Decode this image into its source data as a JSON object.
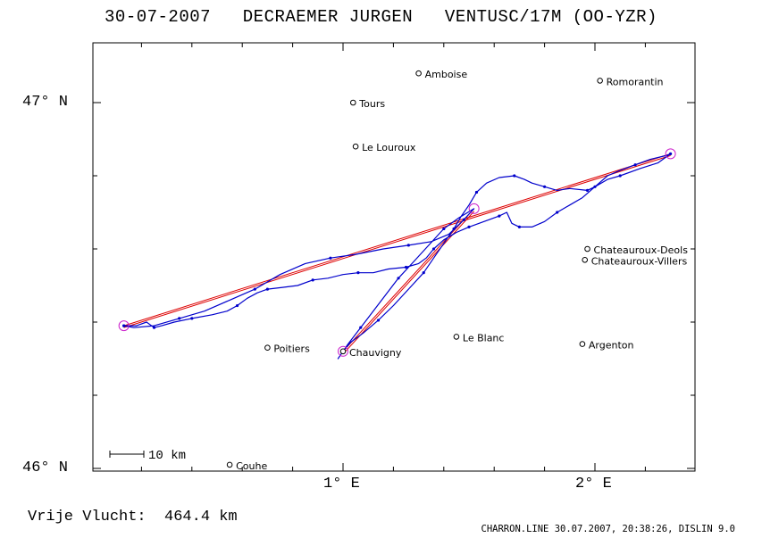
{
  "header": {
    "date": "30-07-2007",
    "pilot": "DECRAEMER JURGEN",
    "glider": "VENTUSC/17M (OO-YZR)"
  },
  "axes": {
    "lat_labels": [
      {
        "text": "47° N",
        "value": 47
      },
      {
        "text": "46° N",
        "value": 46
      }
    ],
    "lon_labels": [
      {
        "text": "1° E",
        "value": 1
      },
      {
        "text": "2° E",
        "value": 2
      }
    ]
  },
  "scale_bar": {
    "label": "10 km"
  },
  "towns": [
    {
      "name": "Amboise",
      "lon": 1.3,
      "lat": 47.08
    },
    {
      "name": "Tours",
      "lon": 1.04,
      "lat": 47.0
    },
    {
      "name": "Romorantin",
      "lon": 2.02,
      "lat": 47.06
    },
    {
      "name": "Le Louroux",
      "lon": 1.05,
      "lat": 46.88
    },
    {
      "name": "Chateauroux-Deols",
      "lon": 1.97,
      "lat": 46.6
    },
    {
      "name": "Chateauroux-Villers",
      "lon": 1.96,
      "lat": 46.57
    },
    {
      "name": "Poitiers",
      "lon": 0.7,
      "lat": 46.33
    },
    {
      "name": "Le Blanc",
      "lon": 1.45,
      "lat": 46.36
    },
    {
      "name": "Argenton",
      "lon": 1.95,
      "lat": 46.34
    },
    {
      "name": "Chauvigny",
      "lon": 1.0,
      "lat": 46.32
    },
    {
      "name": "Couhe",
      "lon": 0.55,
      "lat": 46.01
    }
  ],
  "turnpoints": [
    {
      "lon": 0.13,
      "lat": 46.39
    },
    {
      "lon": 2.3,
      "lat": 46.86
    },
    {
      "lon": 1.52,
      "lat": 46.71
    },
    {
      "lon": 1.0,
      "lat": 46.32
    }
  ],
  "colors": {
    "track": "#0000cc",
    "task": "#dd0000",
    "turnpoint": "#cc22cc",
    "frame": "#000000"
  },
  "footer": {
    "distance": "Vrije Vlucht:  464.4 km",
    "credit": "CHARRON.LINE 30.07.2007, 20:38:26, DISLIN 9.0"
  }
}
